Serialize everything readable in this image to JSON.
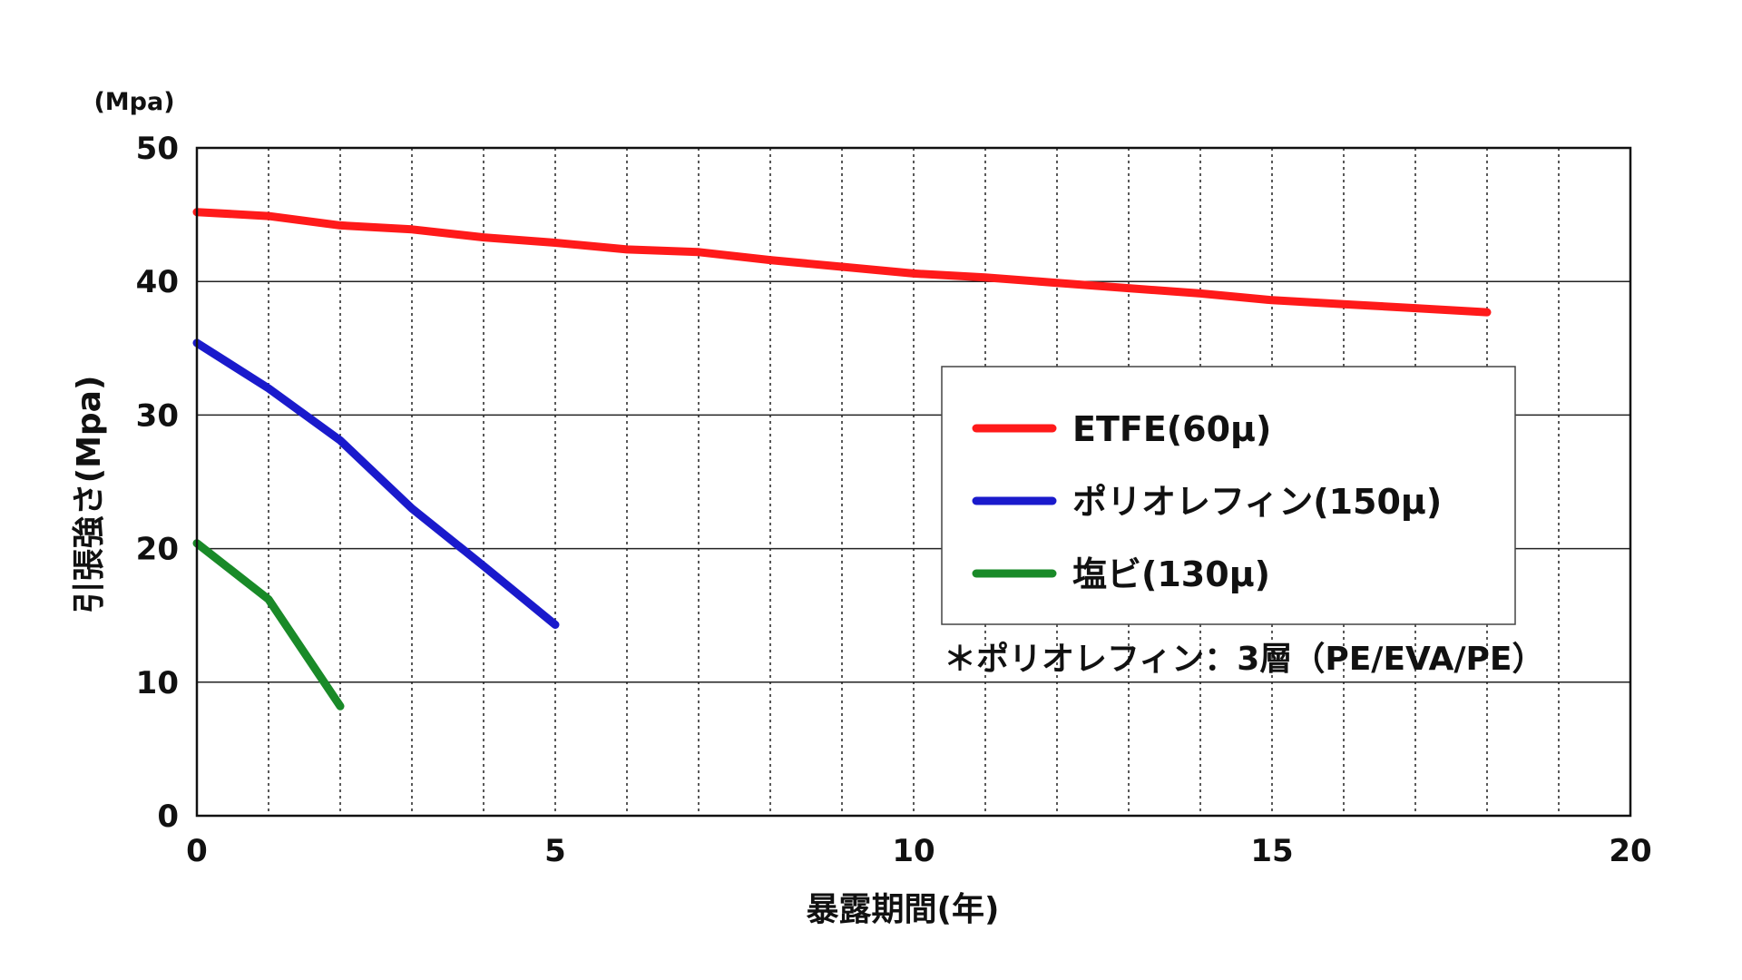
{
  "chart_data": {
    "type": "line",
    "xlabel": "暴露期間(年)",
    "ylabel": "引張強さ(Mpa)",
    "yunit": "(Mpa)",
    "xlim": [
      0,
      20
    ],
    "ylim": [
      0,
      50
    ],
    "xticks": [
      0,
      5,
      10,
      15,
      20
    ],
    "yticks": [
      0,
      10,
      20,
      30,
      40,
      50
    ],
    "grid": {
      "y_solid": true,
      "x_dotted_every": 1
    },
    "legend_position": "center-right",
    "series": [
      {
        "name": "ETFE(60μ)",
        "color": "#ff1a1a",
        "x": [
          0,
          1,
          2,
          3,
          4,
          5,
          6,
          7,
          8,
          9,
          10,
          11,
          12,
          13,
          14,
          15,
          16,
          17,
          18
        ],
        "y": [
          45.2,
          44.9,
          44.2,
          43.9,
          43.3,
          42.9,
          42.4,
          42.2,
          41.6,
          41.1,
          40.6,
          40.3,
          39.9,
          39.5,
          39.1,
          38.6,
          38.3,
          38.0,
          37.7
        ]
      },
      {
        "name": "ポリオレフィン(150μ)",
        "color": "#1a1acc",
        "x": [
          0,
          1,
          2,
          3,
          4,
          5
        ],
        "y": [
          35.4,
          32.0,
          28.1,
          23.0,
          18.7,
          14.3
        ]
      },
      {
        "name": "塩ビ(130μ)",
        "color": "#198a28",
        "x": [
          0,
          1,
          2
        ],
        "y": [
          20.4,
          16.2,
          8.2
        ]
      }
    ],
    "annotation": "＊ポリオレフィン：3層（PE/EVA/PE）"
  }
}
